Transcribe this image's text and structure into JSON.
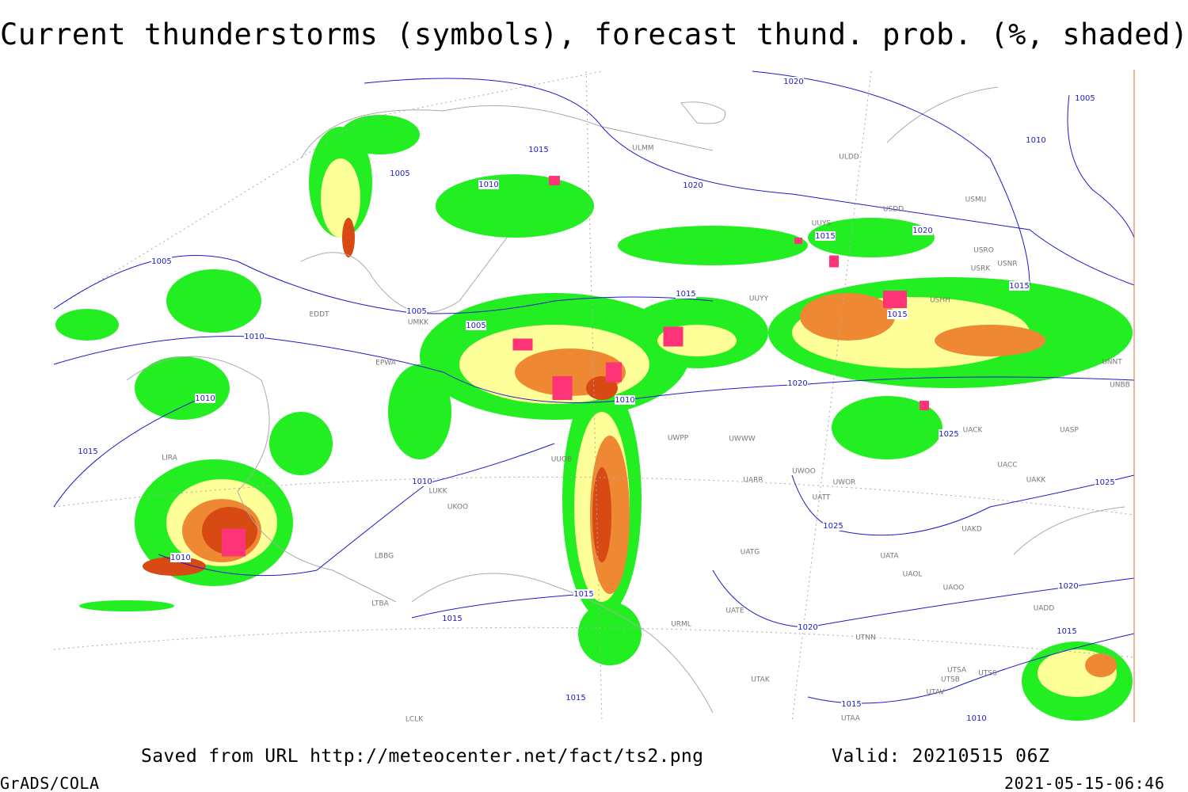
{
  "title": "Current thunderstorms (symbols), forecast thund. prob. (%, shaded)",
  "footer": {
    "source": "Saved from URL http://meteocenter.net/fact/ts2.png",
    "valid": "Valid: 20210515 06Z",
    "software": "GrADS/COLA",
    "timestamp": "2021-05-15-06:46"
  },
  "isobar_labels": [
    "1020",
    "1005",
    "1010",
    "1015",
    "1005",
    "1010",
    "1020",
    "1020",
    "1005",
    "1015",
    "1015",
    "1015",
    "1005",
    "1015",
    "1005",
    "1010",
    "1010",
    "1010",
    "1020",
    "1025",
    "1015",
    "1010",
    "1025",
    "1025",
    "1010",
    "1015",
    "1020",
    "1015",
    "1020",
    "1015",
    "1015",
    "1015",
    "1010"
  ],
  "station_labels": [
    "ULMM",
    "ULDD",
    "USDD",
    "USMU",
    "UUYS",
    "USRO",
    "USRK",
    "USNR",
    "UUYY",
    "USHH",
    "EDDT",
    "UMKK",
    "EPWA",
    "UNNT",
    "UNBB",
    "UWPP",
    "UWWW",
    "UACK",
    "UASP",
    "UARR",
    "UWOO",
    "UWOR",
    "UAKK",
    "UACC",
    "UATT",
    "UAKD",
    "UATG",
    "UATA",
    "UAOL",
    "UAOO",
    "UADD",
    "UATE",
    "URML",
    "UTNN",
    "UTAK",
    "UTSA",
    "UTSS",
    "UTSB",
    "UTAV",
    "UTAA",
    "LCLK",
    "LBBG",
    "LTBA",
    "LIRA",
    "UKOO",
    "LUKK",
    "UUOB"
  ]
}
